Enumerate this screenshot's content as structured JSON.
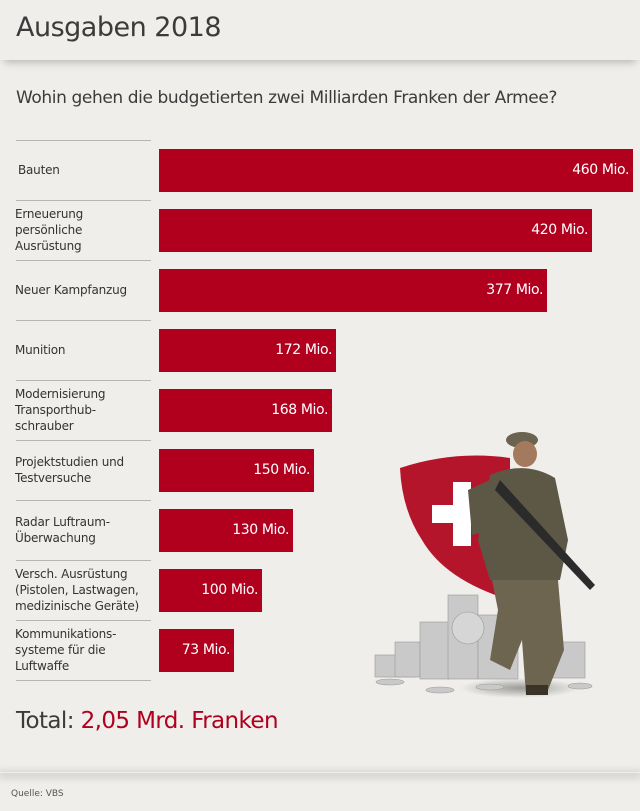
{
  "header": {
    "title": "Ausgaben 2018"
  },
  "subtitle": "Wohin gehen die budgetierten zwei Milliarden Franken der Armee?",
  "colors": {
    "accent": "#b0001e",
    "background": "#efeeea",
    "text": "#3b3b3b"
  },
  "chart_data": {
    "type": "bar",
    "orientation": "horizontal",
    "title": "Ausgaben 2018",
    "subtitle": "Wohin gehen die budgetierten zwei Milliarden Franken der Armee?",
    "unit": "Mio.",
    "categories": [
      "Bauten",
      "Erneuerung persönliche Ausrüstung",
      "Neuer Kampfanzug",
      "Munition",
      "Modernisierung Transporthub-schrauber",
      "Projektstudien und Testversuche",
      "Radar Luftraum-Überwachung",
      "Versch. Ausrüstung (Pistolen, Lastwagen, medizinische Geräte)",
      "Kommunikations-systeme für die Luftwaffe"
    ],
    "category_lines": [
      [
        "Bauten"
      ],
      [
        "Erneuerung",
        "persönliche",
        "Ausrüstung"
      ],
      [
        "Neuer Kampfanzug"
      ],
      [
        "Munition"
      ],
      [
        "Modernisierung",
        "Transporthub-",
        "schrauber"
      ],
      [
        "Projektstudien und",
        "Testversuche"
      ],
      [
        "Radar Luftraum-",
        "Überwachung"
      ],
      [
        "Versch. Ausrüstung",
        "(Pistolen, Lastwagen,",
        "medizinische Geräte)"
      ],
      [
        "Kommunikations-",
        "systeme für die",
        "Luftwaffe"
      ]
    ],
    "values": [
      460,
      420,
      377,
      172,
      168,
      150,
      130,
      100,
      73
    ],
    "value_labels": [
      "460 Mio.",
      "420 Mio.",
      "377 Mio.",
      "172 Mio.",
      "168 Mio.",
      "150 Mio.",
      "130 Mio.",
      "100 Mio.",
      "73 Mio."
    ],
    "xlim": [
      0,
      460
    ],
    "grid": false,
    "legend": "none",
    "xlabel": "",
    "ylabel": ""
  },
  "total": {
    "label": "Total:",
    "value": "2,05 Mrd. Franken"
  },
  "source": "Quelle: VBS",
  "illustration": {
    "description": "Soldat mit Schweizer Wappen und Münzstapeln"
  }
}
